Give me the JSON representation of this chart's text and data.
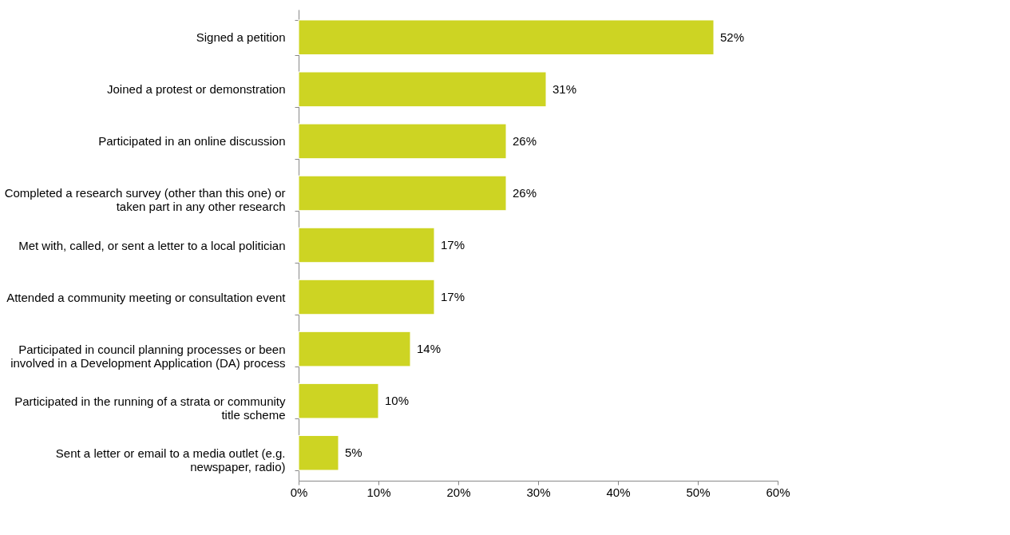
{
  "chart_data": {
    "type": "bar",
    "orientation": "horizontal",
    "categories": [
      "Signed a petition",
      "Joined a protest or demonstration",
      "Participated in an online discussion",
      "Completed a research survey (other than this one) or taken part in any other research",
      "Met with, called, or sent a letter to a local politician",
      "Attended a community meeting or consultation event",
      "Participated in council planning processes or been involved in a Development Application (DA) process",
      "Participated in the running of a strata or community title scheme",
      "Sent a letter or email to a media outlet (e.g. newspaper, radio)"
    ],
    "values": [
      52,
      31,
      26,
      26,
      17,
      17,
      14,
      10,
      5
    ],
    "value_labels": [
      "52%",
      "31%",
      "26%",
      "26%",
      "17%",
      "17%",
      "14%",
      "10%",
      "5%"
    ],
    "color": "#cdd423",
    "xlim": [
      0,
      60
    ],
    "xticks": [
      {
        "value": 0,
        "label": "0%"
      },
      {
        "value": 10,
        "label": "10%"
      },
      {
        "value": 20,
        "label": "20%"
      },
      {
        "value": 30,
        "label": "30%"
      },
      {
        "value": 40,
        "label": "40%"
      },
      {
        "value": 50,
        "label": "50%"
      },
      {
        "value": 60,
        "label": "60%"
      }
    ],
    "grid": false
  }
}
